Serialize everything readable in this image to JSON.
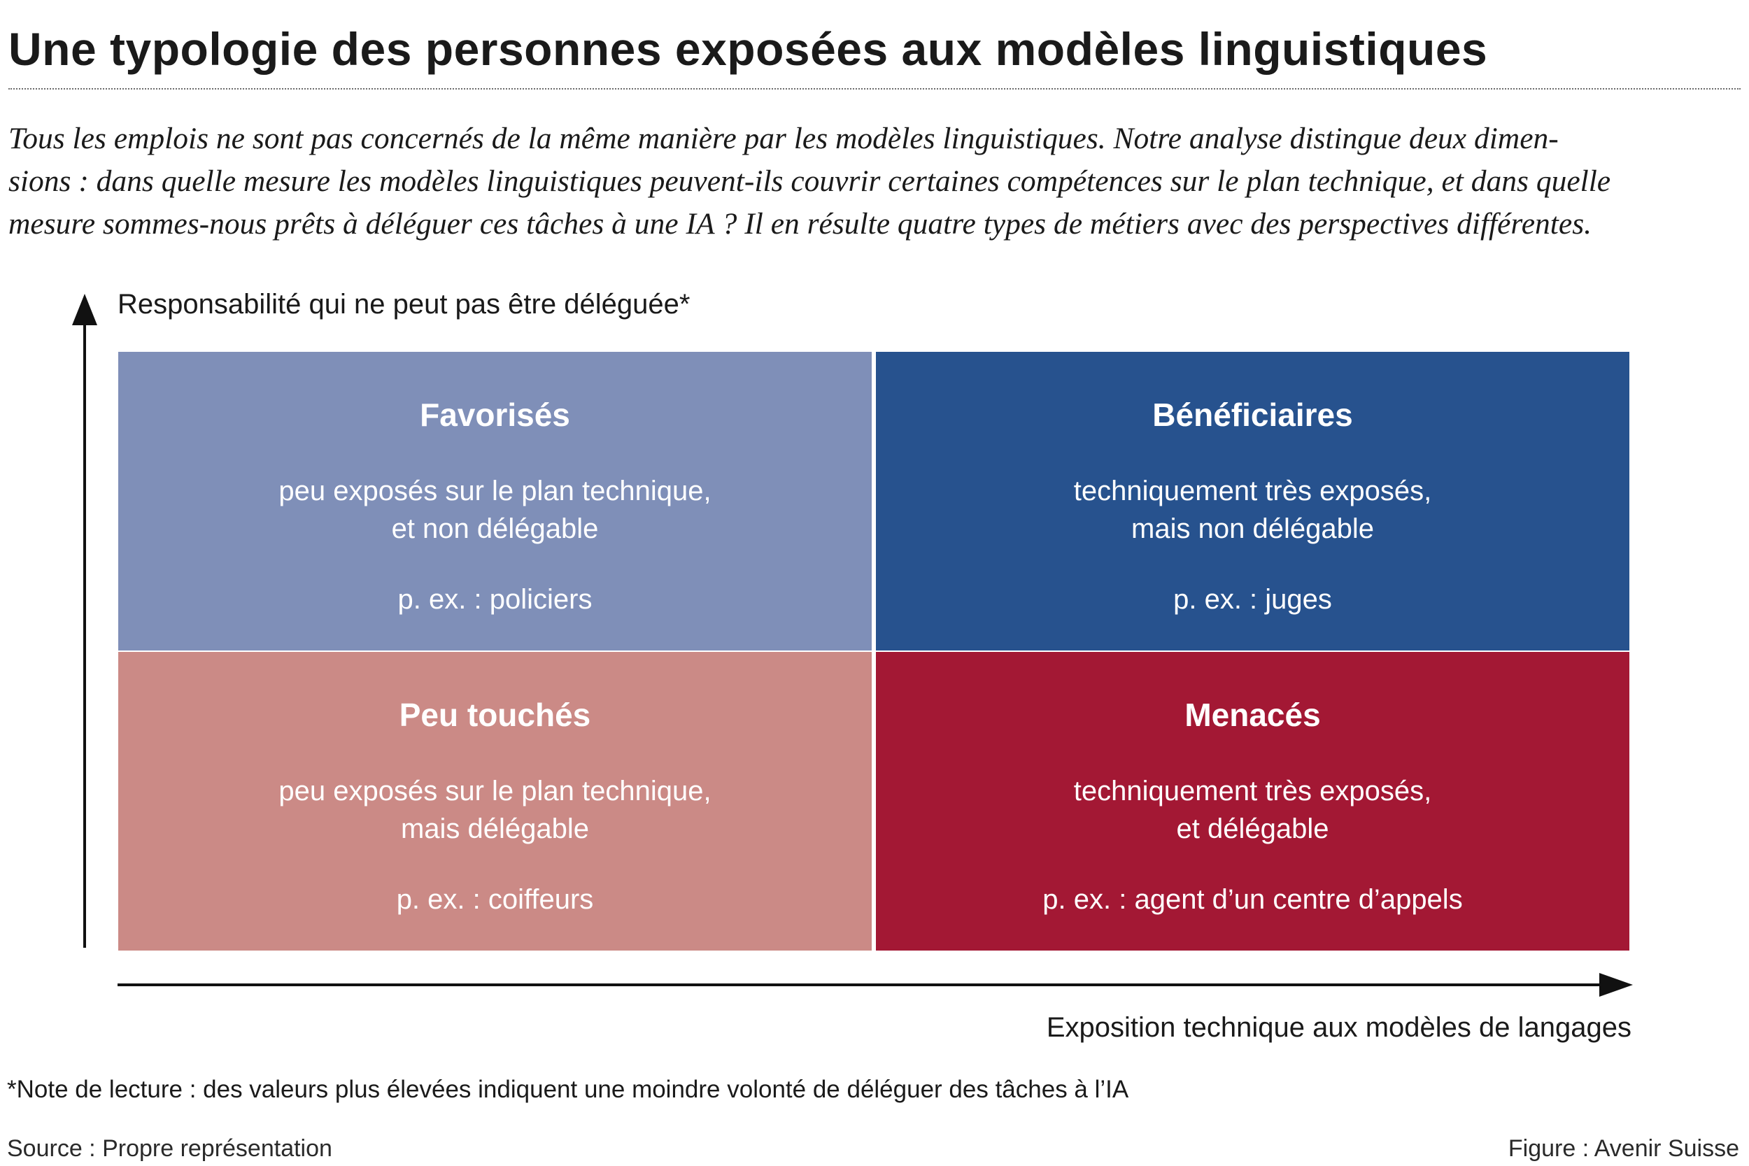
{
  "header": {
    "title": "Une typologie des personnes exposées aux modèles linguistiques",
    "subtitle_lines": [
      "Tous les emplois ne sont pas concernés de la même manière par les modèles linguistiques. Notre analyse distingue deux dimen-",
      "sions : dans quelle mesure les modèles linguistiques peuvent-ils couvrir certaines compétences sur le plan technique, et dans quelle",
      "mesure sommes-nous prêts à déléguer ces tâches à une IA ? Il en résulte quatre types de métiers avec des perspectives différentes."
    ]
  },
  "axes": {
    "y_label": "Responsabilité qui ne peut pas être déléguée*",
    "x_label": "Exposition technique aux modèles de langages"
  },
  "quadrants": {
    "top_left": {
      "title": "Favorisés",
      "desc_line1": "peu exposés sur le plan technique,",
      "desc_line2": "et non délégable",
      "example": "p. ex. : policiers",
      "color": "#7f8fb8"
    },
    "top_right": {
      "title": "Bénéficiaires",
      "desc_line1": "techniquement très exposés,",
      "desc_line2": "mais non délégable",
      "example": "p. ex. : juges",
      "color": "#27528e"
    },
    "bottom_left": {
      "title": "Peu touchés",
      "desc_line1": "peu exposés sur le plan technique,",
      "desc_line2": "mais délégable",
      "example": "p. ex. : coiffeurs",
      "color": "#cb8a86"
    },
    "bottom_right": {
      "title": "Menacés",
      "desc_line1": "techniquement très exposés,",
      "desc_line2": "et délégable",
      "example": "p. ex. : agent d’un centre d’appels",
      "color": "#a31834"
    }
  },
  "footer": {
    "note": "*Note de lecture : des valeurs plus élevées indiquent une moindre volonté de déléguer des tâches à l’IA",
    "source": "Source : Propre représentation",
    "credit": "Figure : Avenir Suisse"
  }
}
